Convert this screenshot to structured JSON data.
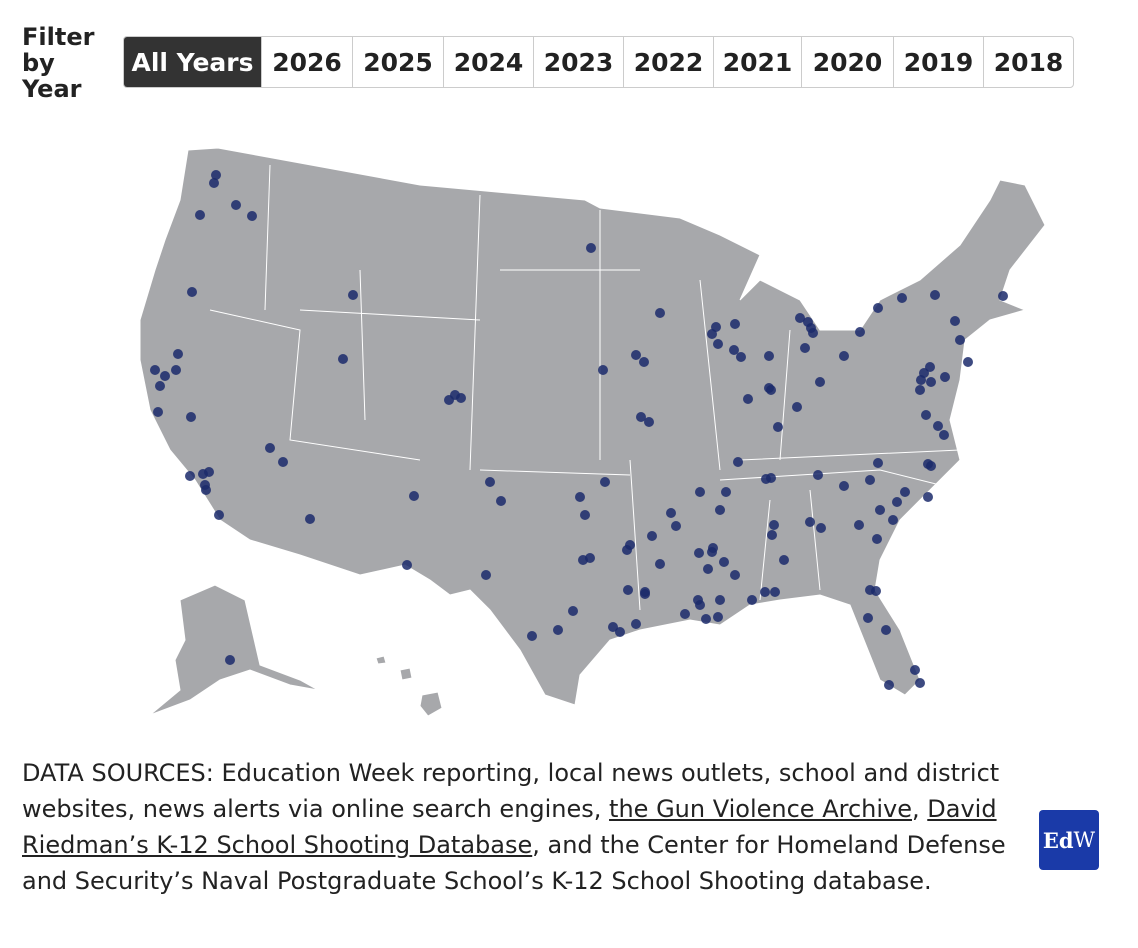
{
  "filter": {
    "label": "Filter by Year",
    "options": [
      "All Years",
      "2026",
      "2025",
      "2024",
      "2023",
      "2022",
      "2021",
      "2020",
      "2019",
      "2018"
    ],
    "selected": "All Years"
  },
  "sources": {
    "text_1": "DATA SOURCES: Education Week reporting, local news outlets, school and district websites, news alerts via online search engines, ",
    "link_1": "the Gun Violence Archive",
    "text_2": ", ",
    "link_2": "David Riedman’s K-12 School Shooting Database",
    "text_3": ", and the Center for Homeland Defense and Security’s Naval Postgraduate School’s K-12 School Shooting database."
  },
  "logo": {
    "bold": "Ed",
    "light": "W"
  }
}
